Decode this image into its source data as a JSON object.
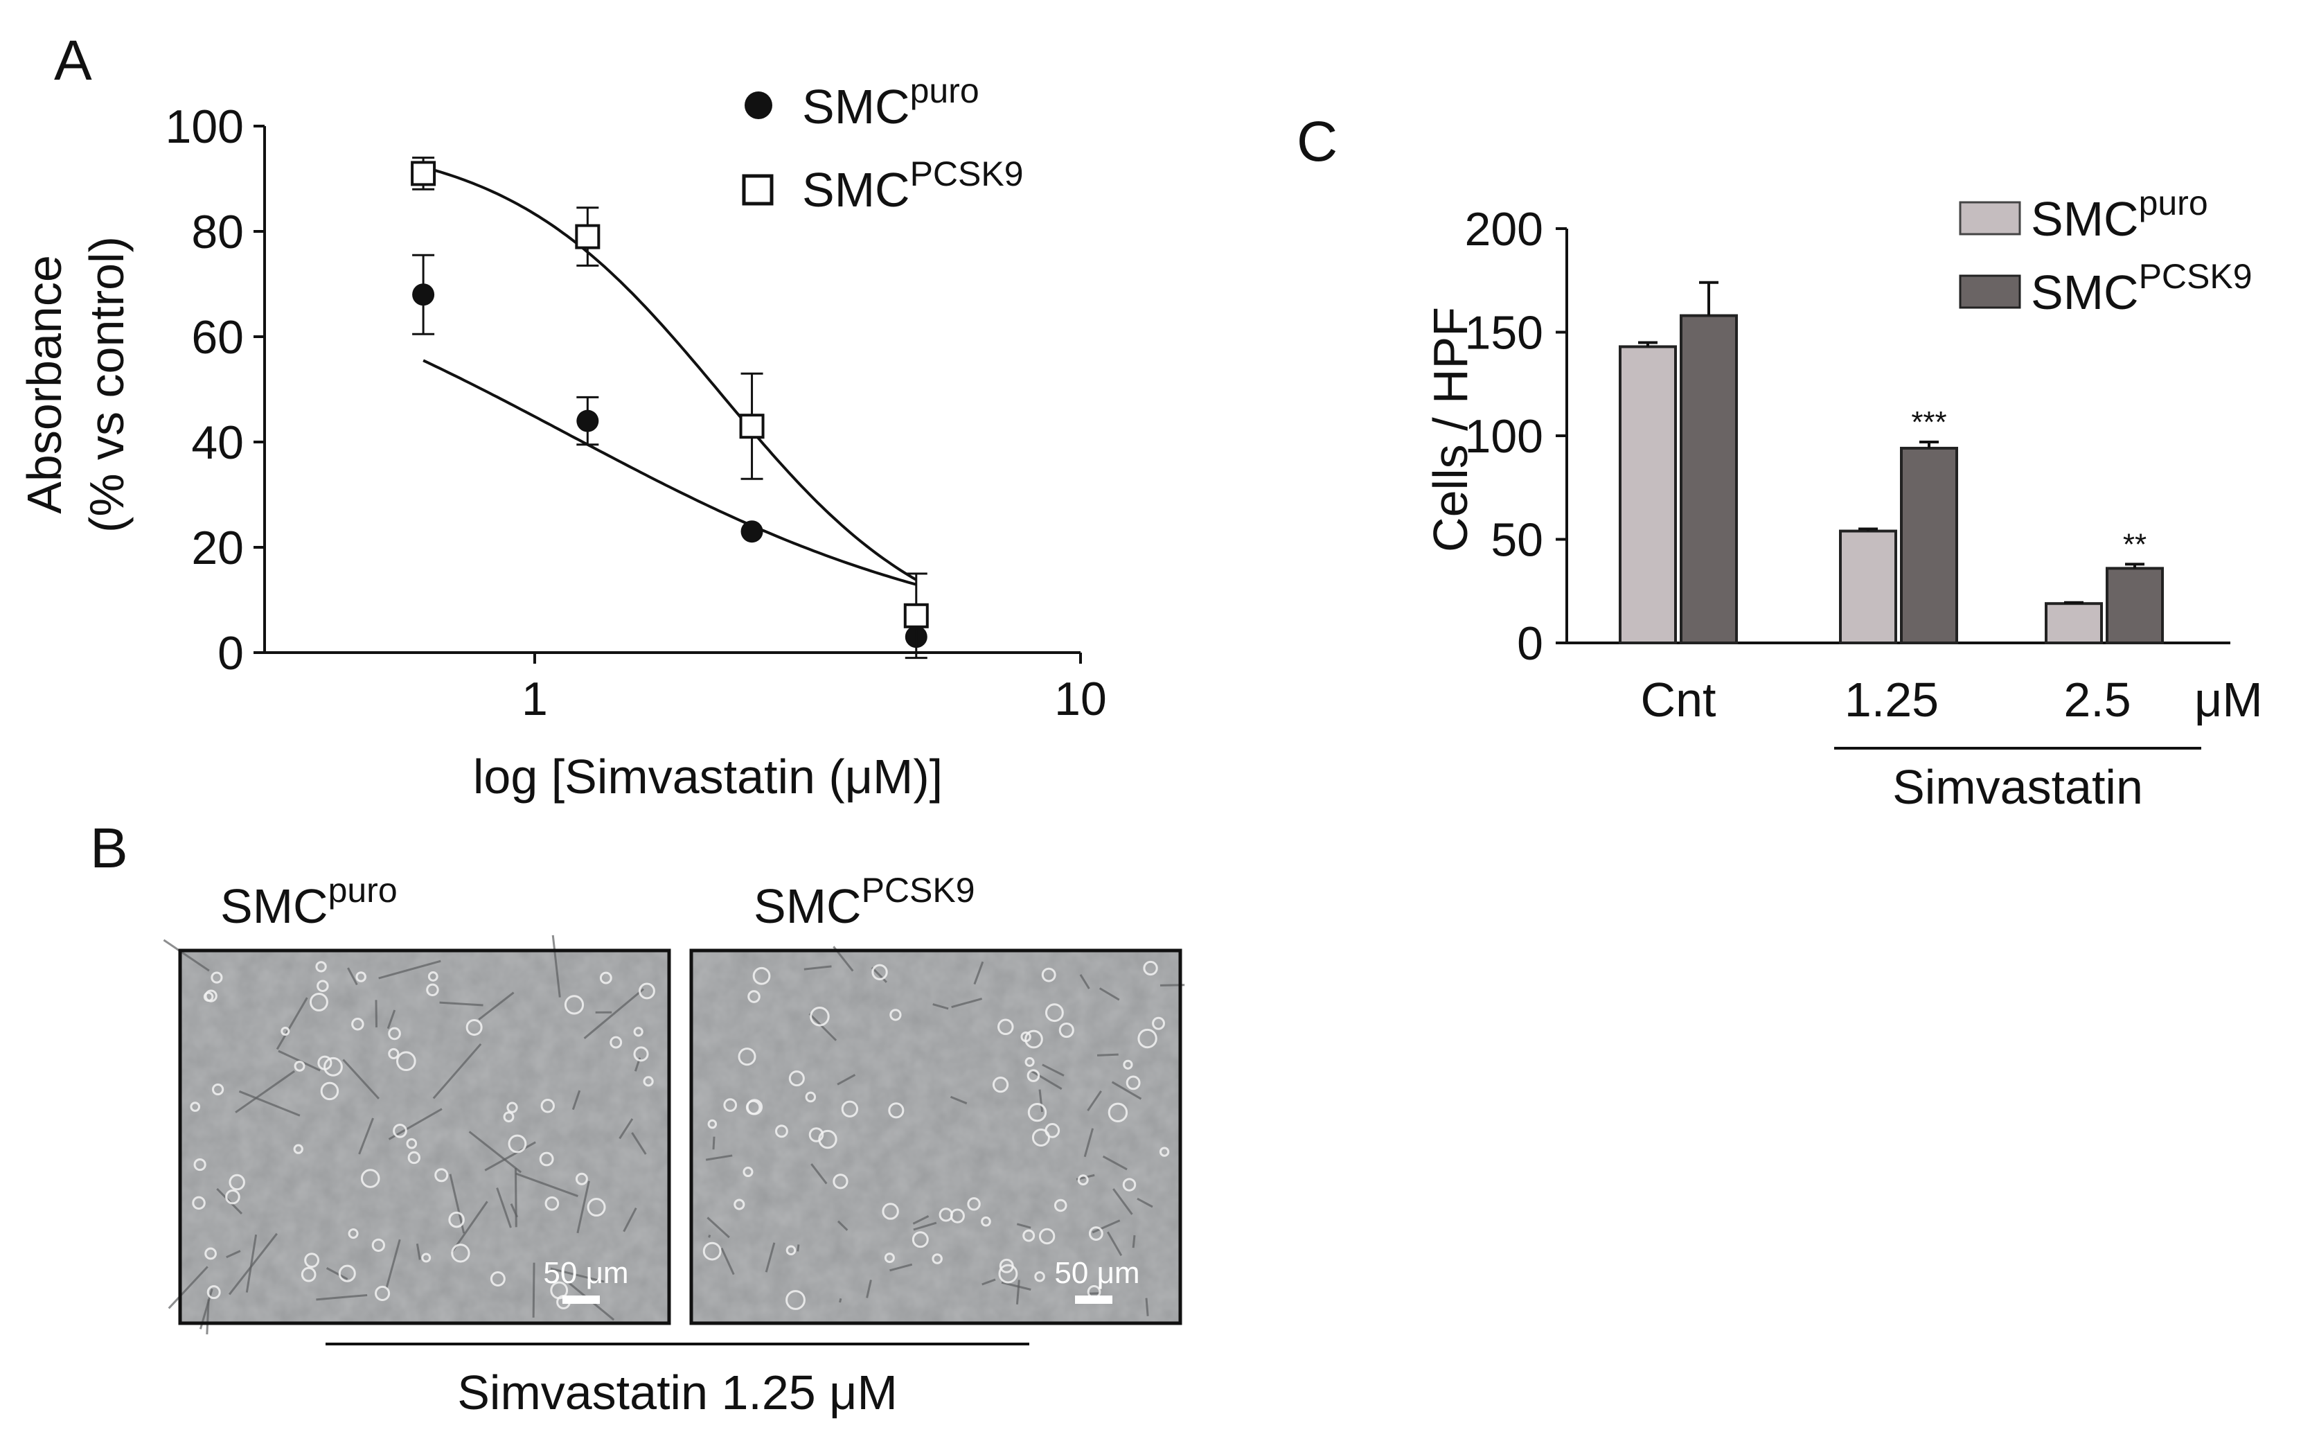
{
  "panel_labels": {
    "a": "A",
    "b": "B",
    "c": "C"
  },
  "series_names": {
    "base": "SMC",
    "puro_sup": "puro",
    "pcsk9_sup": "PCSK9"
  },
  "colors": {
    "puro_bar": "#c5bdbf",
    "pcsk9_bar": "#6a6464",
    "line": "#111111"
  },
  "chart_data": [
    {
      "type": "scatter",
      "title": "",
      "xlabel": "log [Simvastatin (μM)]",
      "ylabel_line1": "Absorbance",
      "ylabel_line2": "(% vs control)",
      "xscale": "log",
      "xlim": [
        0.32,
        10
      ],
      "ylim": [
        0,
        100
      ],
      "x_ticks": [
        1,
        10
      ],
      "x_tick_labels": [
        "1",
        "10"
      ],
      "y_ticks": [
        0,
        20,
        40,
        60,
        80,
        100
      ],
      "y_tick_labels": [
        "0",
        "20",
        "40",
        "60",
        "80",
        "100"
      ],
      "grid": false,
      "legend_position": "top-right",
      "series": [
        {
          "name": "SMC puro",
          "marker": "filled-circle",
          "x": [
            0.625,
            1.25,
            2.5,
            5.0
          ],
          "y": [
            68,
            44,
            23,
            3
          ],
          "err": [
            7.5,
            4.5,
            0,
            0
          ],
          "fit_top": 83,
          "fit_ic50": 1.15,
          "fit_hill": 1.15
        },
        {
          "name": "SMC PCSK9",
          "marker": "open-square",
          "x": [
            0.625,
            1.25,
            2.5,
            5.0
          ],
          "y": [
            91,
            79,
            43,
            7
          ],
          "err": [
            3,
            5.5,
            10,
            8
          ],
          "fit_top": 98,
          "fit_ic50": 2.2,
          "fit_hill": 2.2
        }
      ]
    },
    {
      "type": "bar",
      "title": "",
      "ylabel": "Cells / HPF",
      "ylim": [
        0,
        200
      ],
      "y_ticks": [
        0,
        50,
        100,
        150,
        200
      ],
      "y_tick_labels": [
        "0",
        "50",
        "100",
        "150",
        "200"
      ],
      "categories": [
        "Cnt",
        "1.25",
        "2.5"
      ],
      "unit_label": "μM",
      "group_label": "Simvastatin",
      "legend_position": "top-right",
      "series": [
        {
          "name": "SMC puro",
          "values": [
            143,
            54,
            19
          ],
          "err": [
            2,
            1,
            0.5
          ]
        },
        {
          "name": "SMC PCSK9",
          "values": [
            158,
            94,
            36
          ],
          "err": [
            16,
            3,
            2
          ]
        }
      ],
      "significance": [
        "",
        "***",
        "**"
      ]
    }
  ],
  "micrographs": {
    "left_title": "SMC",
    "left_sup": "puro",
    "right_title": "SMC",
    "right_sup": "PCSK9",
    "scale_bar_left": "50 μm",
    "scale_bar_right": "50 μm",
    "treatment_label": "Simvastatin 1.25 μM"
  }
}
